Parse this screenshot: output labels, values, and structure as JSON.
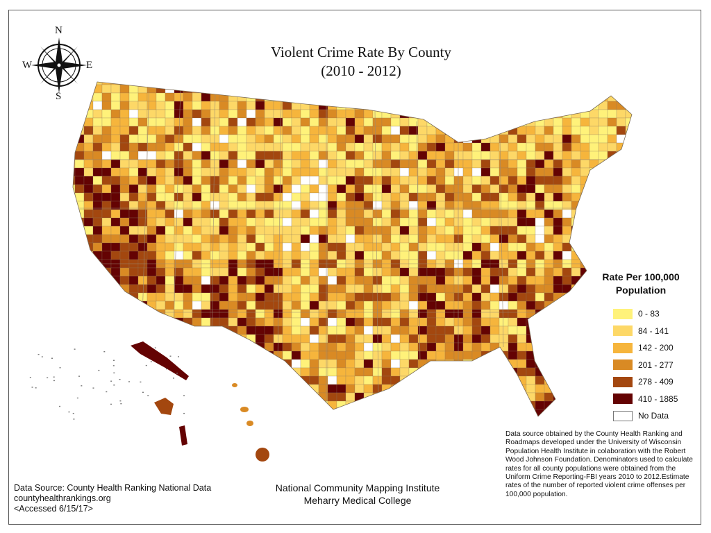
{
  "title": {
    "line1": "Violent Crime Rate By County",
    "line2": "(2010 - 2012)"
  },
  "compass": {
    "n": "N",
    "s": "S",
    "e": "E",
    "w": "W"
  },
  "legend": {
    "title_line1": "Rate Per 100,000",
    "title_line2": "Population",
    "items": [
      {
        "label": "0 - 83",
        "color": "#fff27a"
      },
      {
        "label": "84 - 141",
        "color": "#fdd867"
      },
      {
        "label": "142 - 200",
        "color": "#f6b53c"
      },
      {
        "label": "201 - 277",
        "color": "#d98a24"
      },
      {
        "label": "278 - 409",
        "color": "#a3470f"
      },
      {
        "label": "410 - 1885",
        "color": "#640303"
      },
      {
        "label": "No Data",
        "color": "#ffffff"
      }
    ]
  },
  "note": "Data source obtained by the County Health Ranking and Roadmaps developed under the University of Wisconsin Population Health Institute in colaboration with the Robert Wood Johnson Foundation. Denominators used to calculate rates for all county populations were obtained from the Uniform Crime Reporting-FBI years 2010 to 2012.Estimate rates of the number of reported violent crime offenses per 100,000 population.",
  "source": {
    "line1": "Data Source: County Health Ranking National Data",
    "line2": "countyhealthrankings.org",
    "line3": "<Accessed 6/15/17>"
  },
  "org": {
    "line1": "National Community Mapping Institute",
    "line2": "Meharry Medical College"
  }
}
